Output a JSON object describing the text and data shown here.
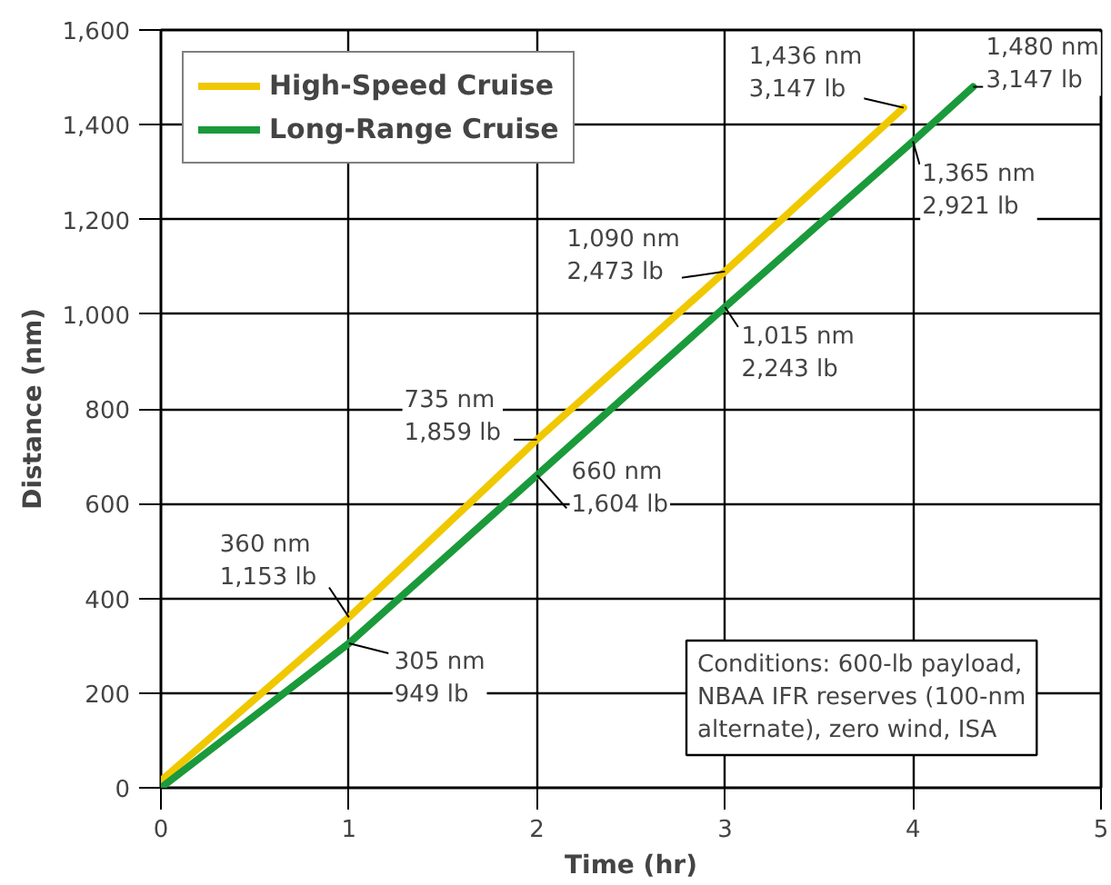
{
  "chart_data": {
    "type": "line",
    "xlabel": "Time (hr)",
    "ylabel": "Distance (nm)",
    "xlim": [
      0,
      5
    ],
    "ylim": [
      0,
      1600
    ],
    "xticks": [
      0,
      1,
      2,
      3,
      4,
      5
    ],
    "yticks": [
      0,
      {
        "value": 200,
        "label": "200"
      },
      {
        "value": 400,
        "label": "400"
      },
      {
        "value": 600,
        "label": "600"
      },
      {
        "value": 800,
        "label": "800"
      },
      {
        "value": 1000,
        "label": "1,000"
      },
      {
        "value": 1200,
        "label": "1,200"
      },
      {
        "value": 1400,
        "label": "1,400"
      },
      {
        "value": 1600,
        "label": "1,600"
      }
    ],
    "grid": true,
    "legend": "top left",
    "marker": "none",
    "line_style": "solid",
    "series": [
      {
        "name": "High-Speed Cruise",
        "color": "#f0c800",
        "x": [
          0,
          1,
          2,
          3,
          3.95
        ],
        "values": [
          15,
          360,
          735,
          1090,
          1436
        ]
      },
      {
        "name": "Long-Range Cruise",
        "color": "#1a9a3a",
        "x": [
          0,
          1,
          2,
          3,
          4,
          4.32
        ],
        "values": [
          0,
          305,
          660,
          1015,
          1365,
          1480
        ]
      }
    ],
    "annotations": [
      {
        "text": "360 nm\n1,153 lb",
        "x": 1,
        "y": 360
      },
      {
        "text": "305 nm\n949 lb",
        "x": 1,
        "y": 305
      },
      {
        "text": "735 nm\n1,859 lb",
        "x": 2,
        "y": 735
      },
      {
        "text": "660 nm\n1,604 lb",
        "x": 2,
        "y": 660
      },
      {
        "text": "1,090 nm\n2,473 lb",
        "x": 3,
        "y": 1090
      },
      {
        "text": "1,015 nm\n2,243 lb",
        "x": 3,
        "y": 1015
      },
      {
        "text": "1,365 nm\n2,921 lb",
        "x": 4,
        "y": 1365
      },
      {
        "text": "1,436 nm\n3,147 lb",
        "x": 3.95,
        "y": 1436
      },
      {
        "text": "1,480 nm\n3,147 lb",
        "x": 4.32,
        "y": 1480
      },
      "Conditions: 600-lb payload,\nNBAA IFR reserves (100-nm\nalternate), zero wind, ISA"
    ]
  }
}
